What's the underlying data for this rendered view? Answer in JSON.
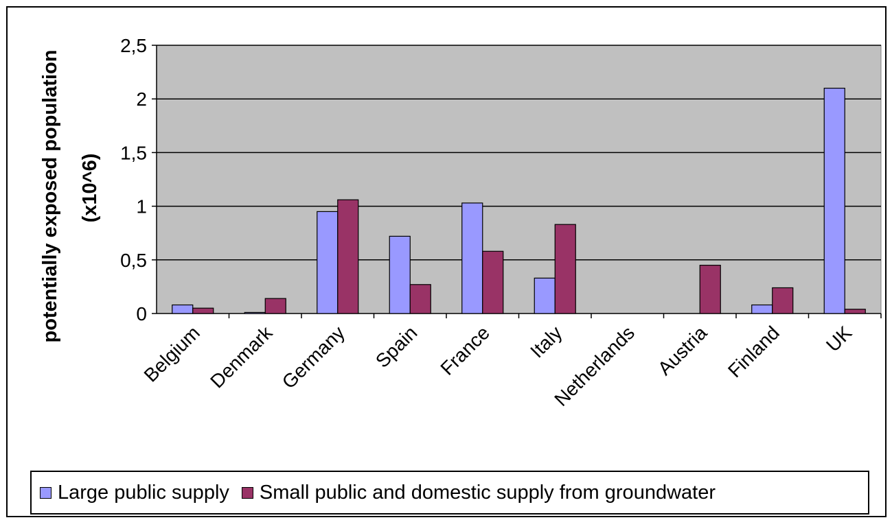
{
  "chart_data": {
    "type": "bar",
    "title": "",
    "xlabel": "",
    "ylabel": "potentially exposed population (x10^6)",
    "ylim": [
      0,
      2.5
    ],
    "yticks": [
      "0",
      "0,5",
      "1",
      "1,5",
      "2",
      "2,5"
    ],
    "yticks_values": [
      0,
      0.5,
      1,
      1.5,
      2,
      2.5
    ],
    "grid": true,
    "legend_position": "bottom",
    "categories": [
      "Belgium",
      "Denmark",
      "Germany",
      "Spain",
      "France",
      "Italy",
      "Netherlands",
      "Austria",
      "Finland",
      "UK"
    ],
    "series": [
      {
        "name": "Large public supply",
        "color": "#9999ff",
        "values": [
          0.08,
          0.01,
          0.95,
          0.72,
          1.03,
          0.33,
          0,
          0,
          0.08,
          2.1
        ]
      },
      {
        "name": "Small public and domestic supply from groundwater",
        "color": "#993366",
        "values": [
          0.05,
          0.14,
          1.06,
          0.27,
          0.58,
          0.83,
          0,
          0.45,
          0.24,
          0.04
        ]
      }
    ],
    "plot_background": "#c0c0c0"
  }
}
